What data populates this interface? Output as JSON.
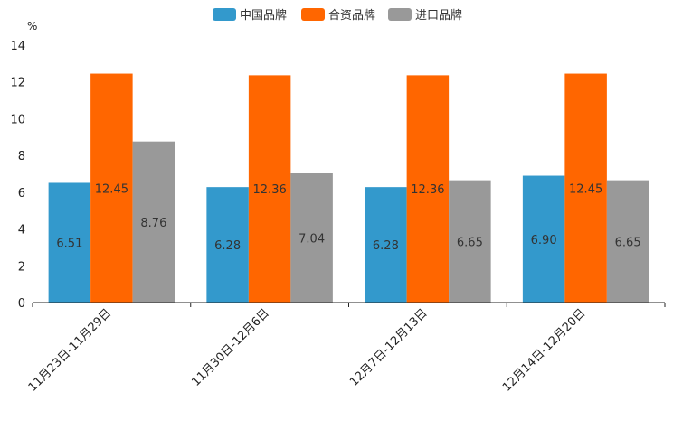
{
  "chart_data": {
    "type": "bar",
    "title": "",
    "unit": "%",
    "xlabel": "",
    "ylabel": "",
    "ylim": [
      0,
      14
    ],
    "yticks": [
      0,
      2,
      4,
      6,
      8,
      10,
      12,
      14
    ],
    "ytick_labels": [
      "0",
      "2",
      "4",
      "6",
      "8",
      "10",
      "12",
      "14"
    ],
    "grid": false,
    "legend_position": "top-center",
    "categories": [
      "11月23日-11月29日",
      "11月30日-12月6日",
      "12月7日-12月13日",
      "12月14日-12月20日"
    ],
    "series": [
      {
        "name": "中国品牌",
        "color": "#3399cc",
        "values": [
          6.51,
          6.28,
          6.28,
          6.9
        ],
        "labels": [
          "6.51",
          "6.28",
          "6.28",
          "6.90"
        ]
      },
      {
        "name": "合资品牌",
        "color": "#ff6600",
        "values": [
          12.45,
          12.36,
          12.36,
          12.45
        ],
        "labels": [
          "12.45",
          "12.36",
          "12.36",
          "12.45"
        ]
      },
      {
        "name": "进口品牌",
        "color": "#999999",
        "values": [
          8.76,
          7.04,
          6.65,
          6.65
        ],
        "labels": [
          "8.76",
          "7.04",
          "6.65",
          "6.65"
        ]
      }
    ]
  }
}
